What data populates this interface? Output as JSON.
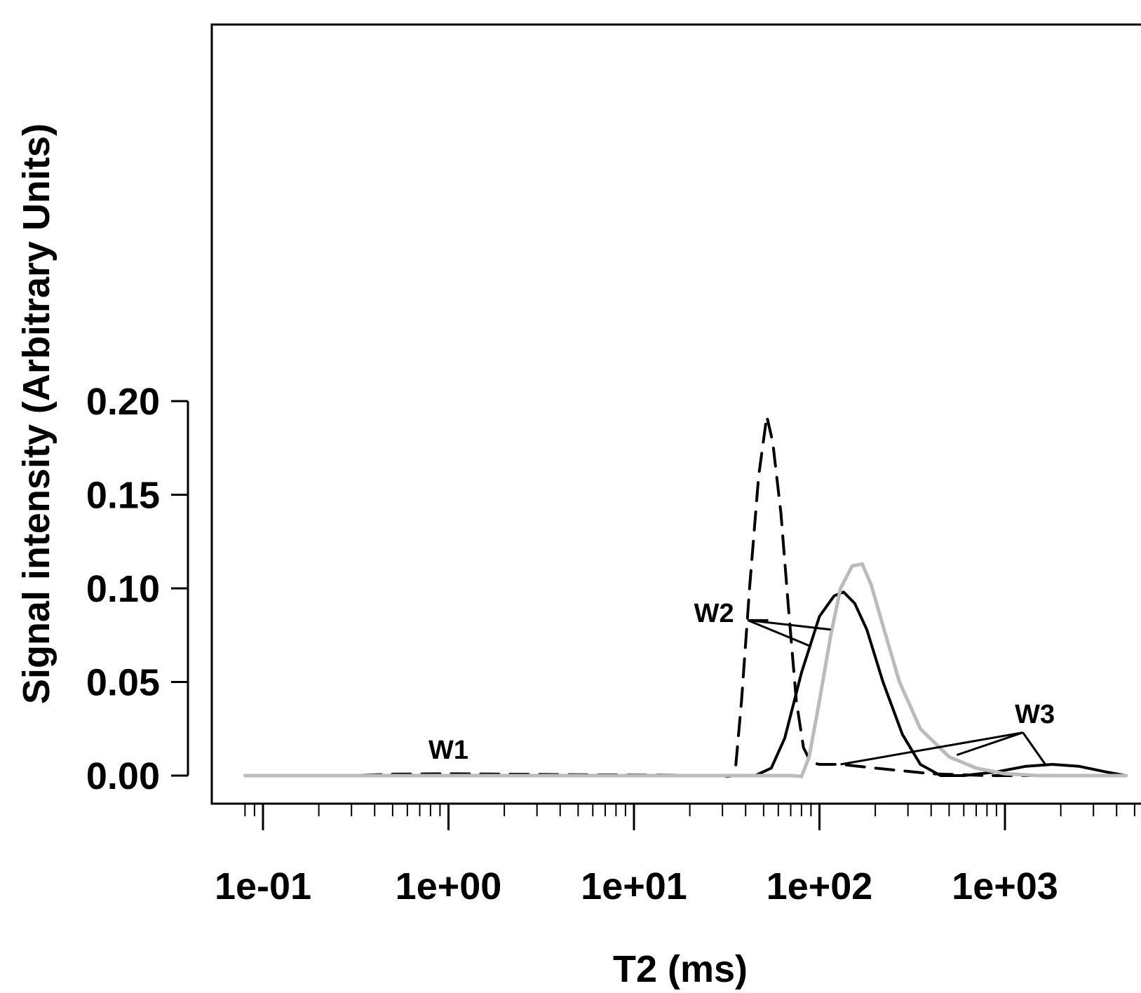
{
  "chart_data": {
    "type": "line",
    "title": "",
    "xlabel": "T2 (ms)",
    "ylabel": "Signal intensity (Arbitrary Units)",
    "x_scale": "log10",
    "xlim": [
      0.06,
      8000
    ],
    "ylim": [
      -0.008,
      0.2
    ],
    "grid": false,
    "legend": "none",
    "x_ticks": [
      {
        "value": 0.1,
        "label": "1e-01"
      },
      {
        "value": 1,
        "label": "1e+00"
      },
      {
        "value": 10,
        "label": "1e+01"
      },
      {
        "value": 100,
        "label": "1e+02"
      },
      {
        "value": 1000,
        "label": "1e+03"
      }
    ],
    "y_ticks": [
      {
        "value": 0.0,
        "label": "0.00"
      },
      {
        "value": 0.05,
        "label": "0.05"
      },
      {
        "value": 0.1,
        "label": "0.10"
      },
      {
        "value": 0.15,
        "label": "0.15"
      },
      {
        "value": 0.2,
        "label": "0.20"
      }
    ],
    "series": [
      {
        "style": "dashed",
        "color": "#000000",
        "points": [
          [
            0.08,
            0.0
          ],
          [
            0.3,
            0.0
          ],
          [
            0.5,
            0.0008
          ],
          [
            1.0,
            0.001
          ],
          [
            2.0,
            0.0008
          ],
          [
            5.0,
            0.0005
          ],
          [
            15.0,
            0.0003
          ],
          [
            30.0,
            0.0
          ],
          [
            32.0,
            -0.0005
          ],
          [
            35.0,
            0.0
          ],
          [
            38.0,
            0.04
          ],
          [
            42.0,
            0.1
          ],
          [
            47.0,
            0.16
          ],
          [
            52.0,
            0.192
          ],
          [
            56.0,
            0.178
          ],
          [
            62.0,
            0.14
          ],
          [
            68.0,
            0.09
          ],
          [
            75.0,
            0.04
          ],
          [
            82.0,
            0.015
          ],
          [
            90.0,
            0.007
          ],
          [
            100.0,
            0.006
          ],
          [
            130.0,
            0.006
          ],
          [
            200.0,
            0.004
          ],
          [
            400.0,
            0.001
          ],
          [
            800.0,
            0.0
          ],
          [
            1500.0,
            0.0
          ]
        ]
      },
      {
        "style": "solid",
        "color": "#000000",
        "points": [
          [
            0.08,
            0.0
          ],
          [
            30.0,
            0.0
          ],
          [
            45.0,
            0.0
          ],
          [
            55.0,
            0.004
          ],
          [
            65.0,
            0.02
          ],
          [
            80.0,
            0.055
          ],
          [
            100.0,
            0.085
          ],
          [
            120.0,
            0.096
          ],
          [
            135.0,
            0.098
          ],
          [
            155.0,
            0.092
          ],
          [
            180.0,
            0.078
          ],
          [
            220.0,
            0.05
          ],
          [
            280.0,
            0.022
          ],
          [
            350.0,
            0.006
          ],
          [
            450.0,
            0.0
          ],
          [
            600.0,
            0.0
          ],
          [
            900.0,
            0.002
          ],
          [
            1300.0,
            0.005
          ],
          [
            1800.0,
            0.006
          ],
          [
            2500.0,
            0.005
          ],
          [
            3500.0,
            0.002
          ],
          [
            4500.0,
            0.0
          ]
        ]
      },
      {
        "style": "solid",
        "color": "#bbbbbb",
        "points": [
          [
            0.08,
            0.0
          ],
          [
            40.0,
            0.0
          ],
          [
            60.0,
            0.0
          ],
          [
            72.0,
            0.0
          ],
          [
            80.0,
            -0.0005
          ],
          [
            88.0,
            0.01
          ],
          [
            100.0,
            0.04
          ],
          [
            115.0,
            0.075
          ],
          [
            130.0,
            0.1
          ],
          [
            150.0,
            0.112
          ],
          [
            170.0,
            0.113
          ],
          [
            190.0,
            0.102
          ],
          [
            220.0,
            0.08
          ],
          [
            270.0,
            0.05
          ],
          [
            350.0,
            0.025
          ],
          [
            500.0,
            0.01
          ],
          [
            700.0,
            0.004
          ],
          [
            1000.0,
            0.001
          ],
          [
            1500.0,
            0.0
          ],
          [
            4500.0,
            0.0
          ]
        ]
      }
    ],
    "annotations": [
      {
        "text": "W1",
        "x": 1.0,
        "y": 0.009,
        "pointers": []
      },
      {
        "text": "W2",
        "x": 27.0,
        "y": 0.082,
        "origin": [
          41.0,
          0.083
        ],
        "pointers": [
          [
            53.0,
            0.083
          ],
          [
            115.0,
            0.078
          ],
          [
            90.0,
            0.069
          ]
        ]
      },
      {
        "text": "W3",
        "x": 1450.0,
        "y": 0.028,
        "origin": [
          1250.0,
          0.023
        ],
        "pointers": [
          [
            130.0,
            0.006
          ],
          [
            550.0,
            0.011
          ],
          [
            1650.0,
            0.006
          ]
        ]
      }
    ]
  }
}
